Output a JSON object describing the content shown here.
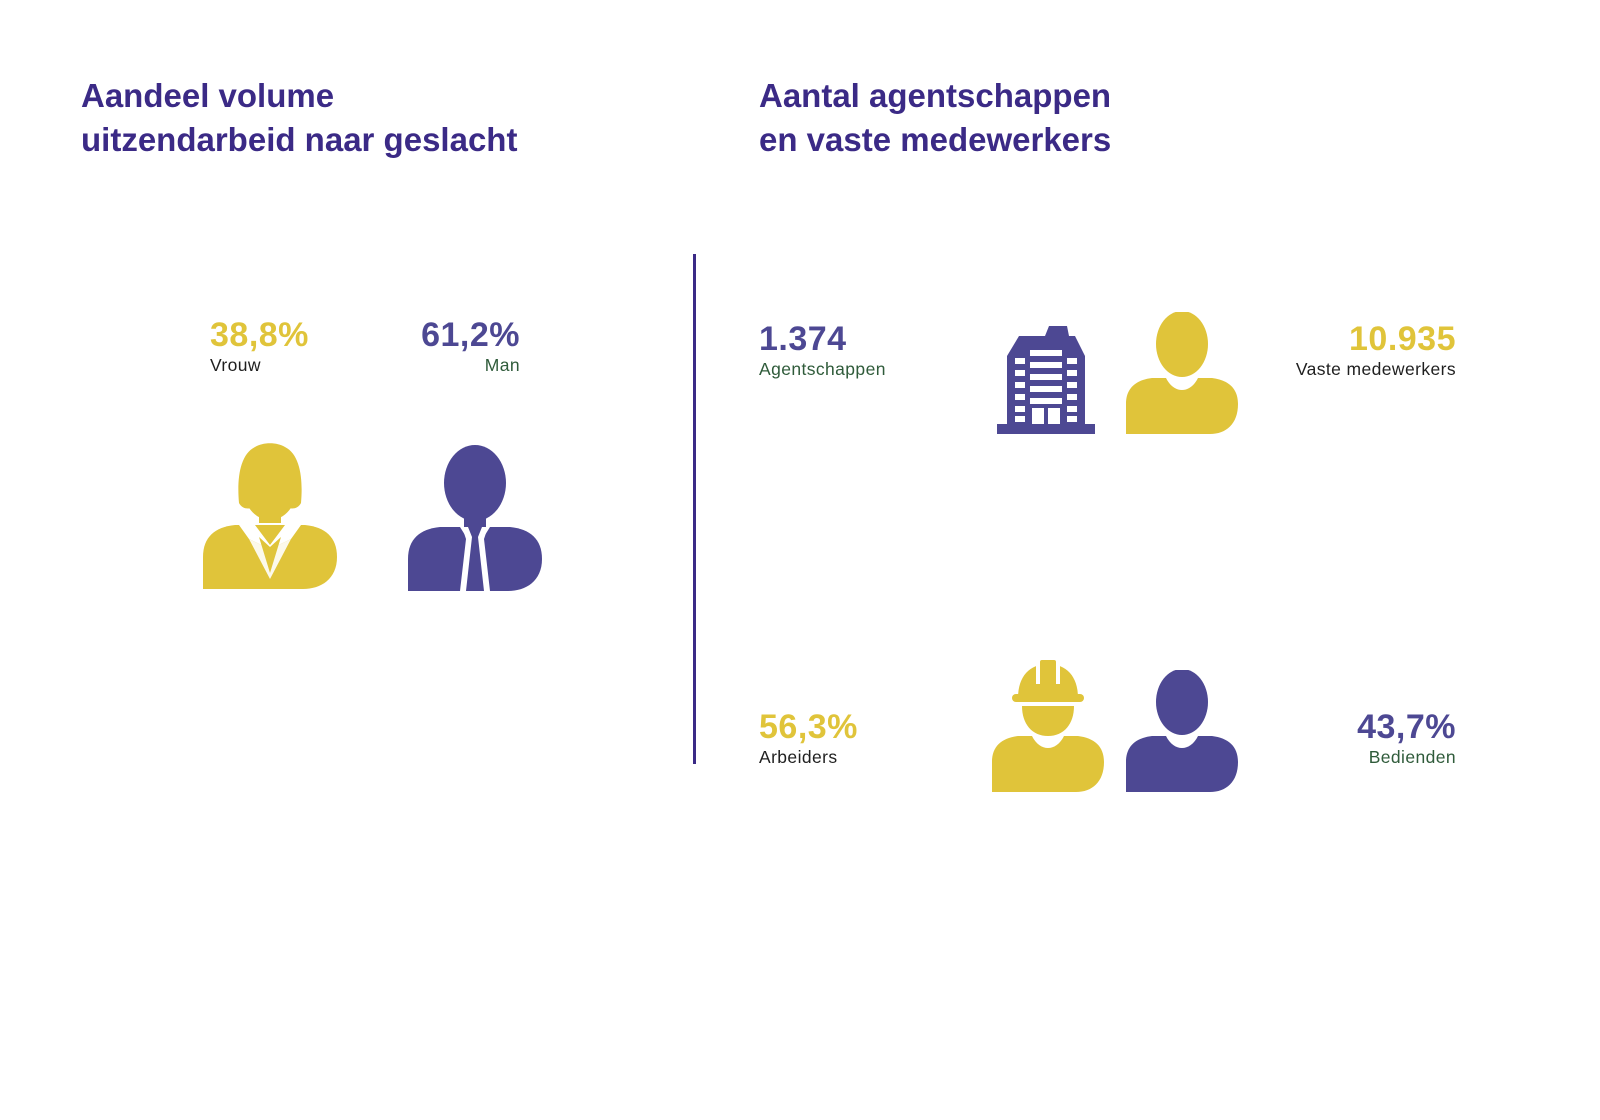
{
  "colors": {
    "yellow": "#e0c43a",
    "purple": "#4d4893",
    "title": "#3b2a86",
    "label_dark": "#1f1f1f",
    "label_green": "#2f5b3a"
  },
  "left_panel": {
    "title_line1": "Aandeel volume",
    "title_line2": "uitzendarbeid naar geslacht",
    "women": {
      "value": "38,8%",
      "label": "Vrouw",
      "icon": "woman-icon"
    },
    "men": {
      "value": "61,2%",
      "label": "Man",
      "icon": "man-icon"
    }
  },
  "right_panel": {
    "title_line1": "Aantal agentschappen",
    "title_line2": "en vaste medewerkers",
    "agencies": {
      "value": "1.374",
      "label": "Agentschappen",
      "icon": "building-icon"
    },
    "permanent_staff": {
      "value": "10.935",
      "label": "Vaste medewerkers",
      "icon": "person-icon"
    },
    "workers": {
      "value": "56,3%",
      "label": "Arbeiders",
      "icon": "worker-helmet-icon"
    },
    "employees": {
      "value": "43,7%",
      "label": "Bedienden",
      "icon": "person-icon"
    }
  }
}
